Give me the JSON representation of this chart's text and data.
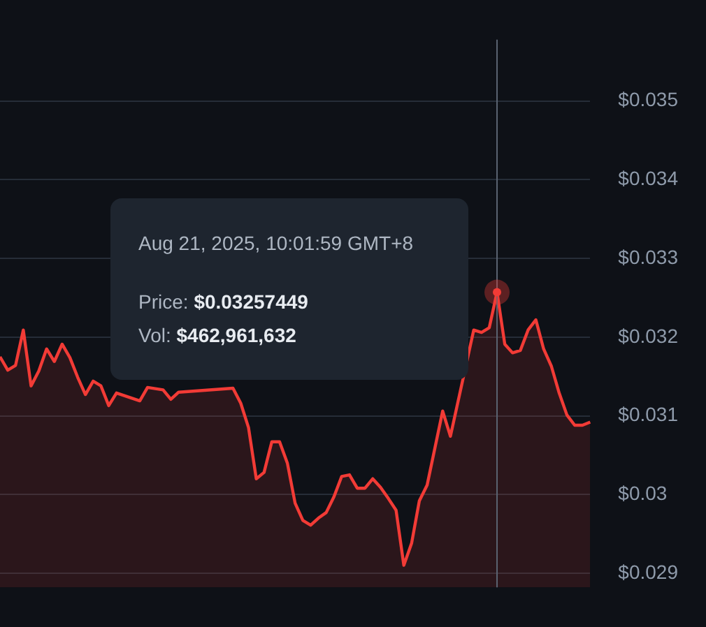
{
  "chart_data": {
    "type": "area",
    "categories": [
      null,
      null,
      null,
      null,
      null,
      null,
      null,
      null,
      null,
      null,
      null,
      null,
      null,
      null,
      null,
      null,
      null,
      null,
      null,
      null,
      null,
      null,
      null,
      null,
      null,
      null,
      null,
      null,
      null,
      null,
      null,
      null,
      null,
      null,
      null,
      null,
      null,
      null,
      null,
      null,
      null,
      null,
      null,
      null,
      null,
      null,
      null,
      null,
      null,
      null,
      null,
      null,
      null,
      null,
      null,
      null,
      null,
      null,
      null,
      null,
      null,
      null,
      null,
      null,
      null,
      null,
      null,
      null,
      null,
      null,
      null,
      null,
      null,
      null,
      null,
      null,
      null
    ],
    "series": [
      {
        "color": "#f23b36",
        "values": [
          0.03175,
          0.03158,
          0.03164,
          0.03209,
          0.03138,
          0.03157,
          0.03185,
          0.03169,
          0.03191,
          0.03174,
          0.03149,
          0.03127,
          0.03144,
          0.03138,
          0.03113,
          0.03129,
          null,
          null,
          0.03119,
          0.03136,
          null,
          0.03133,
          0.03121,
          0.0313,
          null,
          null,
          null,
          null,
          null,
          null,
          0.03135,
          0.03116,
          0.03085,
          0.0302,
          0.03028,
          0.03067,
          0.03067,
          0.0304,
          0.02989,
          0.02967,
          0.02961,
          0.0297,
          0.02977,
          0.02997,
          0.03023,
          0.03025,
          0.03008,
          0.03008,
          0.0302,
          0.03009,
          0.02995,
          0.0298,
          0.0291,
          0.02938,
          0.02992,
          0.03012,
          0.03059,
          0.03106,
          0.03074,
          null,
          null,
          0.03209,
          0.03206,
          0.03212,
          0.03257,
          0.03191,
          0.0318,
          0.03183,
          0.03209,
          0.03222,
          0.03185,
          0.03163,
          0.03129,
          0.03101,
          0.03088,
          0.03088,
          0.03092
        ]
      }
    ],
    "ylim": [
      0.02882,
      0.03578
    ],
    "yticks": [
      {
        "value": 0.029,
        "label": "$0.029"
      },
      {
        "value": 0.03,
        "label": "$0.03"
      },
      {
        "value": 0.031,
        "label": "$0.031"
      },
      {
        "value": 0.032,
        "label": "$0.032"
      },
      {
        "value": 0.033,
        "label": "$0.033"
      },
      {
        "value": 0.034,
        "label": "$0.034"
      },
      {
        "value": 0.035,
        "label": "$0.035"
      }
    ],
    "grid": "y",
    "tick_labels": "y",
    "legend": false,
    "marker": "none",
    "line_style": "solid",
    "annotations": [
      "Aug 21, 2025, 10:01:59 GMT+8",
      "Price: $0.03257449",
      "Vol: $462,961,632"
    ]
  }
}
